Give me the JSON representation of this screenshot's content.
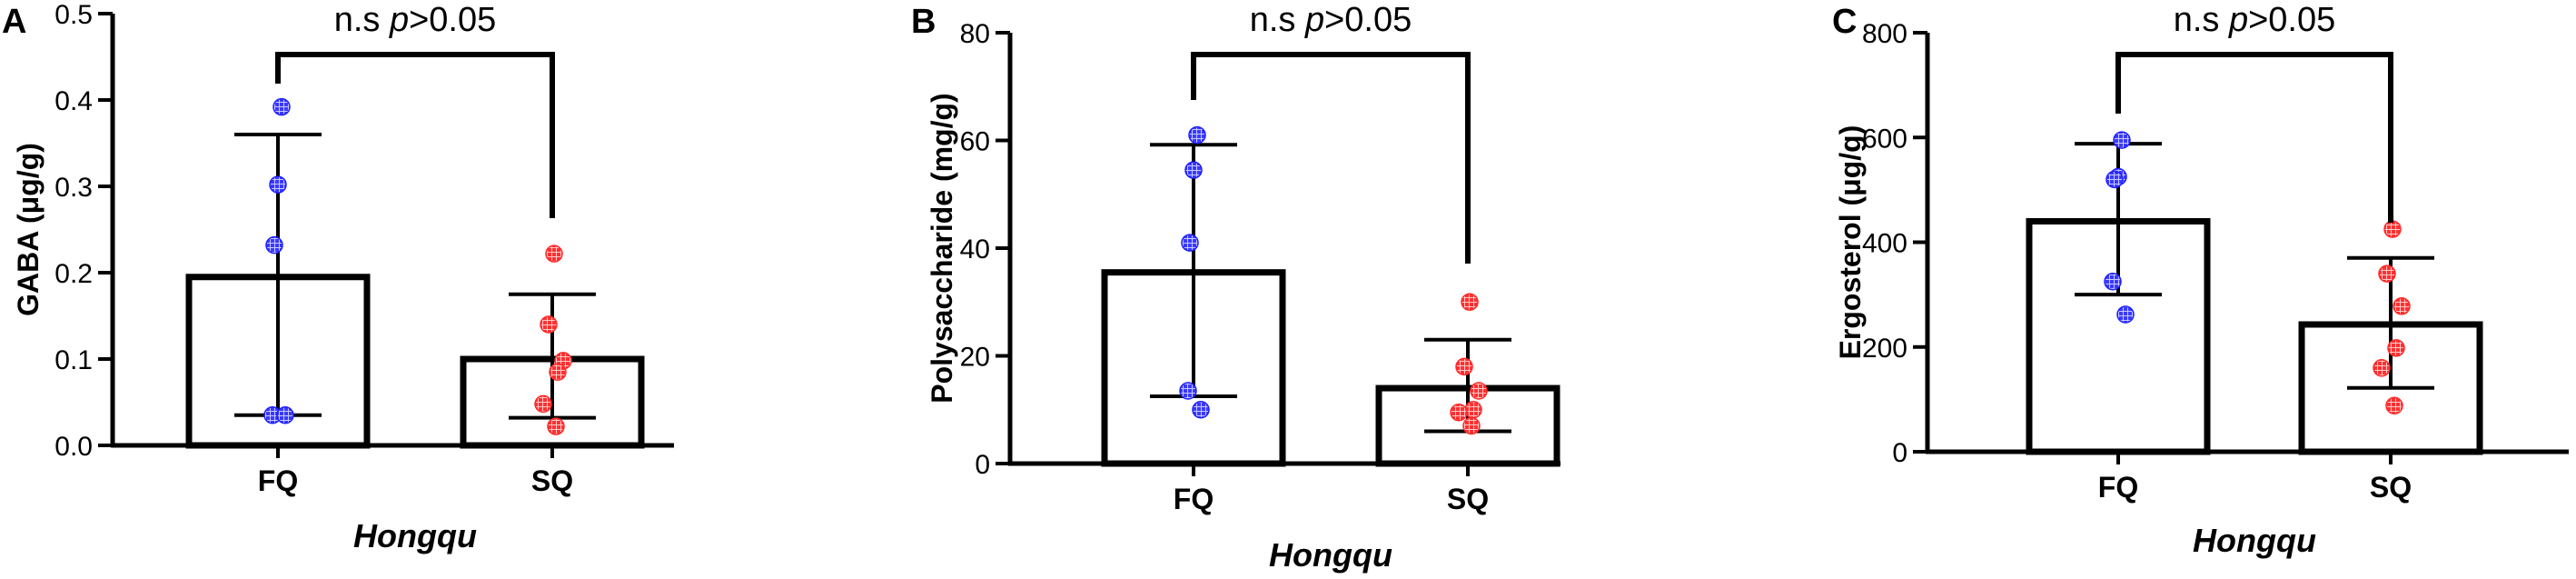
{
  "chart_data": [
    {
      "type": "bar",
      "panel_label": "A",
      "categories": [
        "FQ",
        "SQ"
      ],
      "values": [
        0.195,
        0.1
      ],
      "error_high": [
        0.36,
        0.175
      ],
      "error_low": [
        0.035,
        0.032
      ],
      "points": [
        [
          0.392,
          0.302,
          0.232,
          0.035,
          0.035
        ],
        [
          0.222,
          0.14,
          0.098,
          0.085,
          0.048,
          0.022
        ]
      ],
      "point_colors": [
        "#1f1fff",
        "#ff2a2a"
      ],
      "ylabel": "GABA (μg/g)",
      "xlabel": "Hongqu",
      "ylim": [
        0,
        0.5
      ],
      "yticks": [
        "0.0",
        "0.1",
        "0.2",
        "0.3",
        "0.4",
        "0.5"
      ],
      "annotation": {
        "ns": "n.s",
        "p": "p",
        "rest": ">0.05"
      }
    },
    {
      "type": "bar",
      "panel_label": "B",
      "categories": [
        "FQ",
        "SQ"
      ],
      "values": [
        35.5,
        14
      ],
      "error_high": [
        59.2,
        23
      ],
      "error_low": [
        12.5,
        6
      ],
      "points": [
        [
          61,
          54.5,
          41,
          13.5,
          10
        ],
        [
          30,
          18,
          13.5,
          10,
          9.5,
          7
        ]
      ],
      "point_colors": [
        "#1f1fff",
        "#ff2a2a"
      ],
      "ylabel": "Polysaccharide (mg/g)",
      "xlabel": "Hongqu",
      "ylim": [
        0,
        80
      ],
      "yticks": [
        "0",
        "20",
        "40",
        "60",
        "80"
      ],
      "annotation": {
        "ns": "n.s",
        "p": "p",
        "rest": ">0.05"
      }
    },
    {
      "type": "bar",
      "panel_label": "C",
      "categories": [
        "FQ",
        "SQ"
      ],
      "values": [
        440,
        243
      ],
      "error_high": [
        588,
        370
      ],
      "error_low": [
        300,
        122
      ],
      "points": [
        [
          595,
          525,
          520,
          325,
          262
        ],
        [
          425,
          340,
          278,
          198,
          160,
          88
        ]
      ],
      "point_colors": [
        "#1f1fff",
        "#ff2a2a"
      ],
      "ylabel": "Ergosterol  (μg/g)",
      "xlabel": "Hongqu",
      "ylim": [
        0,
        800
      ],
      "yticks": [
        "0",
        "200",
        "400",
        "600",
        "800"
      ],
      "annotation": {
        "ns": "n.s",
        "p": "p",
        "rest": ">0.05"
      }
    }
  ]
}
